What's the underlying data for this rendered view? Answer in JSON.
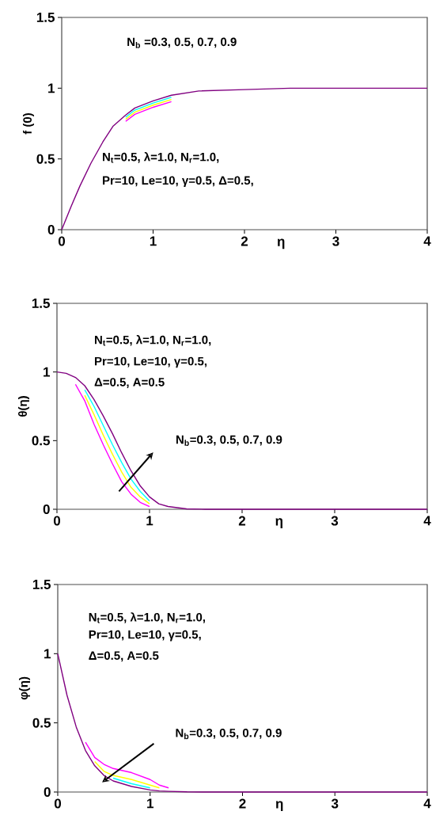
{
  "chart_data": [
    {
      "type": "line",
      "xlabel": "η",
      "ylabel": "f (0)",
      "xlim": [
        0,
        4
      ],
      "ylim": [
        0,
        1.5
      ],
      "xticks": [
        0,
        1,
        2,
        3,
        4
      ],
      "yticks": [
        0,
        0.5,
        1,
        1.5
      ],
      "annotations": [
        "N$_{b}$ =0.3, 0.5, 0.7, 0.9",
        "N$_{t}$=0.5, λ=1.0, N$_{r}$=1.0,",
        "Pr=10, Le=10, γ=0.5, Δ=0.5,"
      ],
      "x": [
        0,
        0.1,
        0.2,
        0.32,
        0.45,
        0.56,
        0.7,
        0.8,
        1,
        1.2,
        1.5,
        2,
        2.5,
        3,
        4
      ],
      "series": [
        {
          "color": "#ff00ff",
          "values": [
            null,
            null,
            null,
            null,
            null,
            null,
            0.765,
            0.815,
            0.865,
            0.905,
            null,
            null,
            null,
            null,
            null
          ]
        },
        {
          "color": "#ffff00",
          "values": [
            null,
            null,
            null,
            null,
            null,
            null,
            0.78,
            0.83,
            0.88,
            0.92,
            null,
            null,
            null,
            null,
            null
          ]
        },
        {
          "color": "#00ffff",
          "values": [
            null,
            null,
            null,
            null,
            null,
            null,
            0.795,
            0.845,
            0.895,
            0.935,
            null,
            null,
            null,
            null,
            null
          ]
        },
        {
          "color": "#800080",
          "values": [
            0,
            0.16,
            0.31,
            0.47,
            0.62,
            0.73,
            0.81,
            0.86,
            0.91,
            0.95,
            0.98,
            0.99,
            1,
            1,
            1
          ]
        }
      ]
    },
    {
      "type": "line",
      "xlabel": "η",
      "ylabel": "θ(η)",
      "xlim": [
        0,
        4
      ],
      "ylim": [
        0,
        1.5
      ],
      "xticks": [
        0,
        1,
        2,
        3,
        4
      ],
      "yticks": [
        0,
        0.5,
        1,
        1.5
      ],
      "annotations": [
        "N$_{t}$=0.5, λ=1.0, N$_{r}$=1.0,",
        "Pr=10, Le=10, γ=0.5,",
        "Δ=0.5, A=0.5",
        "N$_{b}$=0.3, 0.5, 0.7, 0.9"
      ],
      "x": [
        0,
        0.1,
        0.2,
        0.3,
        0.4,
        0.5,
        0.6,
        0.7,
        0.8,
        0.9,
        1,
        1.1,
        1.2,
        1.4,
        1.6,
        2,
        4
      ],
      "series": [
        {
          "color": "#ff00ff",
          "values": [
            null,
            null,
            0.91,
            0.79,
            0.62,
            0.47,
            0.33,
            0.2,
            0.11,
            0.05,
            0.02,
            null,
            null,
            null,
            null,
            null,
            null
          ]
        },
        {
          "color": "#ffff00",
          "values": [
            null,
            null,
            null,
            0.83,
            0.69,
            0.54,
            0.4,
            0.27,
            0.16,
            0.09,
            0.04,
            null,
            null,
            null,
            null,
            null,
            null
          ]
        },
        {
          "color": "#00ffff",
          "values": [
            null,
            null,
            null,
            0.87,
            0.75,
            0.61,
            0.47,
            0.34,
            0.22,
            0.13,
            0.06,
            null,
            null,
            null,
            null,
            null,
            null
          ]
        },
        {
          "color": "#800080",
          "values": [
            1,
            0.99,
            0.96,
            0.9,
            0.8,
            0.68,
            0.55,
            0.41,
            0.28,
            0.17,
            0.09,
            0.04,
            0.02,
            0.003,
            0,
            0,
            0
          ]
        }
      ]
    },
    {
      "type": "line",
      "xlabel": "η",
      "ylabel": "φ(η)",
      "xlim": [
        0,
        4
      ],
      "ylim": [
        0,
        1.5
      ],
      "xticks": [
        0,
        1,
        2,
        3,
        4
      ],
      "yticks": [
        0,
        0.5,
        1,
        1.5
      ],
      "annotations": [
        "N$_{t}$=0.5, λ=1.0, N$_{r}$=1.0,",
        "Pr=10, Le=10, γ=0.5,",
        "Δ=0.5, A=0.5",
        "N$_{b}$=0.3, 0.5, 0.7, 0.9"
      ],
      "x": [
        0,
        0.1,
        0.2,
        0.3,
        0.4,
        0.5,
        0.6,
        0.8,
        1,
        1.1,
        1.2,
        1.4,
        1.6,
        2,
        4
      ],
      "series": [
        {
          "color": "#ff00ff",
          "values": [
            null,
            null,
            null,
            0.36,
            0.25,
            0.2,
            0.17,
            0.14,
            0.09,
            0.05,
            0.03,
            null,
            null,
            null,
            null
          ]
        },
        {
          "color": "#ffff00",
          "values": [
            null,
            null,
            null,
            null,
            0.22,
            0.15,
            0.12,
            0.09,
            0.05,
            0.03,
            null,
            null,
            null,
            null,
            null
          ]
        },
        {
          "color": "#00ffff",
          "values": [
            null,
            null,
            null,
            null,
            null,
            null,
            0.1,
            0.06,
            0.03,
            null,
            null,
            null,
            null,
            null,
            null
          ]
        },
        {
          "color": "#800080",
          "values": [
            1,
            0.7,
            0.47,
            0.3,
            0.19,
            0.12,
            0.08,
            0.04,
            0.015,
            0.008,
            0.005,
            0.001,
            0,
            0,
            0
          ]
        }
      ]
    }
  ]
}
